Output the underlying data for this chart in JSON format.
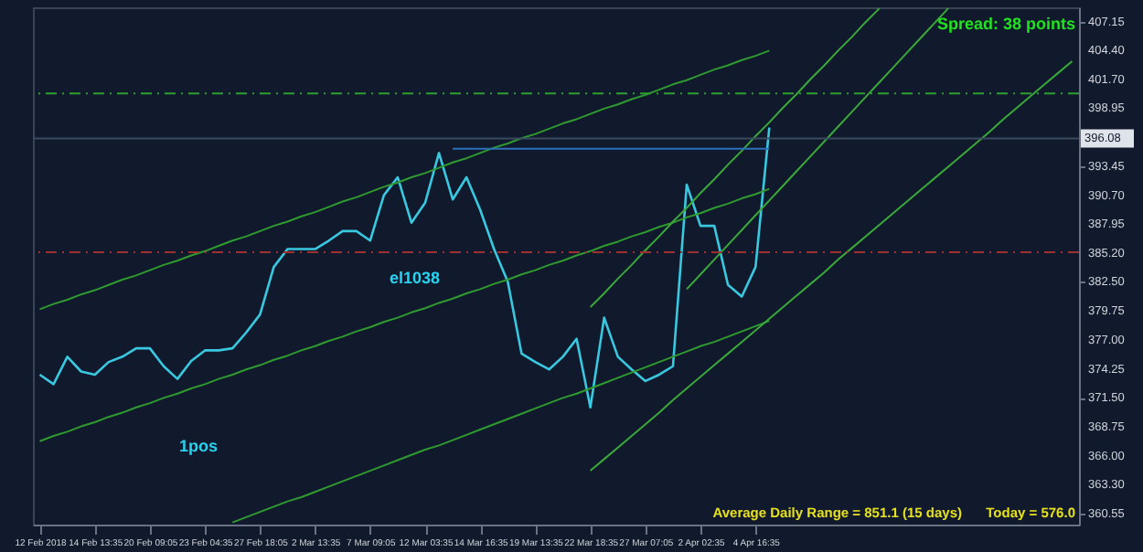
{
  "chart_data": {
    "type": "line",
    "categories": [
      "12 Feb 2018",
      null,
      null,
      null,
      "14 Feb 13:35",
      null,
      null,
      null,
      "20 Feb 09:05",
      null,
      null,
      null,
      "23 Feb 04:35",
      null,
      null,
      null,
      "27 Feb 18:05",
      null,
      null,
      null,
      "2 Mar 13:35",
      null,
      null,
      null,
      "7 Mar 09:05",
      null,
      null,
      null,
      "12 Mar 03:35",
      null,
      null,
      null,
      "14 Mar 16:35",
      null,
      null,
      null,
      "19 Mar 13:35",
      null,
      null,
      null,
      "22 Mar 18:35",
      null,
      null,
      null,
      "27 Mar 07:05",
      null,
      null,
      null,
      "2 Apr 02:35",
      null,
      null,
      null,
      "4 Apr 16:35",
      null,
      null,
      null,
      null,
      null,
      null,
      null,
      null,
      null,
      null,
      null,
      null,
      null,
      null,
      null,
      null,
      null,
      null,
      null,
      null,
      null,
      null,
      null
    ],
    "series": [
      {
        "color": "#39c8e0",
        "values": [
          373.7,
          372.8,
          375.4,
          374.0,
          373.7,
          374.9,
          375.4,
          376.2,
          376.2,
          374.5,
          373.3,
          375.0,
          376.0,
          376.0,
          376.2,
          377.7,
          379.4,
          383.9,
          385.6,
          385.6,
          385.6,
          386.4,
          387.3,
          387.3,
          386.4,
          390.7,
          392.4,
          388.1,
          390.0,
          394.7,
          390.3,
          392.4,
          389.3,
          385.6,
          382.5,
          375.7,
          374.9,
          374.2,
          375.4,
          377.1,
          370.6,
          379.1,
          375.4,
          374.2,
          373.1,
          373.7,
          374.5,
          391.7,
          387.8,
          387.8,
          382.2,
          381.1,
          383.9,
          397.1,
          null,
          null,
          null,
          null,
          null,
          null,
          null,
          null,
          null,
          null,
          null,
          null,
          null,
          null,
          null,
          null,
          null,
          null,
          null,
          null,
          null,
          null
        ]
      },
      {
        "color": "#2f9a2f",
        "values": [
          379.9,
          380.4,
          380.8,
          381.3,
          381.7,
          382.2,
          382.7,
          383.1,
          383.6,
          384.1,
          384.5,
          385.0,
          385.4,
          385.9,
          386.4,
          386.8,
          387.3,
          387.8,
          388.2,
          388.7,
          389.1,
          389.6,
          390.1,
          390.5,
          391.0,
          391.5,
          391.9,
          392.4,
          392.8,
          393.3,
          393.8,
          394.2,
          394.7,
          395.2,
          395.6,
          396.1,
          396.5,
          397.0,
          397.5,
          397.9,
          398.4,
          398.9,
          399.3,
          399.8,
          400.2,
          400.7,
          401.2,
          401.6,
          402.1,
          402.6,
          403.0,
          403.5,
          403.9,
          404.4,
          null,
          null,
          null,
          null,
          null,
          null,
          null,
          null,
          null,
          null,
          null,
          null,
          null,
          null,
          null,
          null,
          null,
          null,
          null,
          null,
          null,
          null
        ]
      },
      {
        "color": "#2f9a2f",
        "values": [
          367.4,
          367.9,
          368.3,
          368.8,
          369.2,
          369.7,
          370.1,
          370.6,
          371.0,
          371.5,
          371.9,
          372.4,
          372.8,
          373.3,
          373.7,
          374.2,
          374.6,
          375.1,
          375.5,
          376.0,
          376.4,
          376.9,
          377.3,
          377.8,
          378.2,
          378.7,
          379.1,
          379.6,
          380.0,
          380.5,
          380.9,
          381.4,
          381.8,
          382.3,
          382.7,
          383.2,
          383.6,
          384.1,
          384.5,
          385.0,
          385.4,
          385.9,
          386.3,
          386.8,
          387.2,
          387.7,
          388.1,
          388.6,
          389.0,
          389.5,
          389.9,
          390.4,
          390.8,
          391.3,
          null,
          null,
          null,
          null,
          null,
          null,
          null,
          null,
          null,
          null,
          null,
          null,
          null,
          null,
          null,
          null,
          null,
          null,
          null,
          null,
          null,
          null
        ]
      },
      {
        "color": "#2f9a2f",
        "values": [
          null,
          null,
          null,
          null,
          null,
          null,
          null,
          null,
          null,
          null,
          null,
          null,
          null,
          null,
          359.7,
          360.2,
          360.7,
          361.2,
          361.7,
          362.1,
          362.6,
          363.1,
          363.6,
          364.1,
          364.6,
          365.1,
          365.6,
          366.1,
          366.6,
          367.0,
          367.5,
          368.0,
          368.5,
          369.0,
          369.5,
          370.0,
          370.5,
          371.0,
          371.5,
          371.9,
          372.4,
          372.9,
          373.4,
          373.9,
          374.4,
          374.9,
          375.4,
          375.9,
          376.4,
          376.8,
          377.3,
          377.8,
          378.3,
          378.8,
          null,
          null,
          null,
          null,
          null,
          null,
          null,
          null,
          null,
          null,
          null,
          null,
          null,
          null,
          null,
          null,
          null,
          null,
          null,
          null,
          null,
          null
        ]
      },
      {
        "color": "#3aa83a",
        "values": [
          null,
          null,
          null,
          null,
          null,
          null,
          null,
          null,
          null,
          null,
          null,
          null,
          null,
          null,
          null,
          null,
          null,
          null,
          null,
          null,
          null,
          null,
          null,
          null,
          null,
          null,
          null,
          null,
          null,
          null,
          null,
          null,
          null,
          null,
          null,
          null,
          null,
          null,
          null,
          null,
          380.1,
          381.4,
          382.8,
          384.1,
          385.5,
          386.8,
          388.2,
          389.5,
          390.9,
          392.2,
          393.6,
          394.9,
          396.3,
          397.6,
          399.0,
          400.3,
          401.7,
          403.0,
          404.4,
          405.7,
          407.1,
          408.4,
          null,
          null,
          null,
          null,
          null,
          null,
          null,
          null,
          null,
          null,
          null,
          null,
          null,
          null
        ]
      },
      {
        "color": "#3aa83a",
        "values": [
          null,
          null,
          null,
          null,
          null,
          null,
          null,
          null,
          null,
          null,
          null,
          null,
          null,
          null,
          null,
          null,
          null,
          null,
          null,
          null,
          null,
          null,
          null,
          null,
          null,
          null,
          null,
          null,
          null,
          null,
          null,
          null,
          null,
          null,
          null,
          null,
          null,
          null,
          null,
          null,
          null,
          null,
          null,
          null,
          null,
          null,
          null,
          381.8,
          383.2,
          384.6,
          386.0,
          387.4,
          388.8,
          390.2,
          391.6,
          393.0,
          394.4,
          395.8,
          397.2,
          398.6,
          400.0,
          401.4,
          402.8,
          404.2,
          405.6,
          407.0,
          408.4,
          null,
          null,
          null,
          null,
          null,
          null,
          null,
          null,
          null
        ]
      },
      {
        "color": "#3aa83a",
        "values": [
          null,
          null,
          null,
          null,
          null,
          null,
          null,
          null,
          null,
          null,
          null,
          null,
          null,
          null,
          null,
          null,
          null,
          null,
          null,
          null,
          null,
          null,
          null,
          null,
          null,
          null,
          null,
          null,
          null,
          null,
          null,
          null,
          null,
          null,
          null,
          null,
          null,
          null,
          null,
          null,
          364.6,
          365.7,
          366.8,
          367.9,
          369.0,
          370.1,
          371.3,
          372.4,
          373.5,
          374.6,
          375.7,
          376.8,
          377.9,
          379.0,
          380.1,
          381.2,
          382.3,
          383.4,
          384.6,
          385.7,
          386.8,
          387.9,
          389.0,
          390.1,
          391.2,
          392.3,
          393.4,
          394.5,
          395.6,
          396.7,
          397.9,
          399.0,
          400.1,
          401.2,
          402.3,
          403.4
        ]
      },
      {
        "color": "#2d6fb8",
        "values": [
          null,
          null,
          null,
          null,
          null,
          null,
          null,
          null,
          null,
          null,
          null,
          null,
          null,
          null,
          null,
          null,
          null,
          null,
          null,
          null,
          null,
          null,
          null,
          null,
          null,
          null,
          null,
          null,
          null,
          null,
          395.1,
          395.1,
          395.1,
          395.1,
          395.1,
          395.1,
          395.1,
          395.1,
          395.1,
          395.1,
          395.1,
          395.1,
          395.1,
          395.1,
          395.1,
          395.1,
          395.1,
          395.1,
          395.1,
          395.1,
          395.1,
          395.1,
          395.1,
          395.1,
          null,
          null,
          null,
          null,
          null,
          null,
          null,
          null,
          null,
          null,
          null,
          null,
          null,
          null,
          null,
          null,
          null,
          null,
          null,
          null,
          null,
          null
        ]
      }
    ],
    "ylim": [
      359.5,
      408.5
    ],
    "yticks": [
      {
        "value": 360.55,
        "label": "360.55"
      },
      {
        "value": 363.3,
        "label": "363.30"
      },
      {
        "value": 366,
        "label": "366.00"
      },
      {
        "value": 368.75,
        "label": "368.75"
      },
      {
        "value": 371.5,
        "label": "371.50"
      },
      {
        "value": 374.25,
        "label": "374.25"
      },
      {
        "value": 377,
        "label": "377.00"
      },
      {
        "value": 379.75,
        "label": "379.75"
      },
      {
        "value": 382.5,
        "label": "382.50"
      },
      {
        "value": 385.2,
        "label": "385.20"
      },
      {
        "value": 387.95,
        "label": "387.95"
      },
      {
        "value": 390.7,
        "label": "390.70"
      },
      {
        "value": 393.45,
        "label": "393.45"
      },
      {
        "value": 398.95,
        "label": "398.95"
      },
      {
        "value": 401.7,
        "label": "401.70"
      },
      {
        "value": 404.4,
        "label": "404.40"
      },
      {
        "value": 407.15,
        "label": "407.15"
      }
    ],
    "ref_lines": [
      {
        "axis": "y",
        "value": 400.35,
        "color": "#2e9e2e",
        "line_style": "dashed"
      },
      {
        "axis": "y",
        "value": 385.3,
        "color": "#a03030",
        "line_style": "dashed"
      },
      {
        "axis": "y",
        "value": 396.08,
        "label": "396.08",
        "color": "#3a4a60"
      }
    ],
    "annotations": [
      "el1038",
      "1pos",
      "Spread: 38 points",
      "Average Daily Range = 851.1 (15 days)",
      "Today = 576.0"
    ],
    "grid": false,
    "line_style": "solid"
  }
}
